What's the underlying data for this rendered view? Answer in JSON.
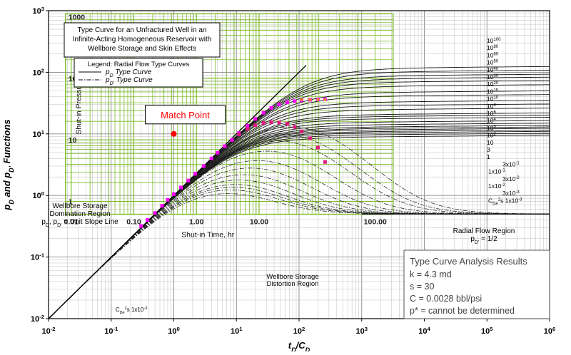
{
  "chart_data": {
    "type": "line",
    "xlabel": "t_D/C_D",
    "ylabel": "p_D and p_D' Functions",
    "xscale": "log",
    "yscale": "log",
    "xlim": [
      0.01,
      1000000
    ],
    "ylim": [
      0.01,
      1000
    ],
    "grid": true,
    "x_ticks": [
      "10^-2",
      "10^-1",
      "10^0",
      "10^1",
      "10^2",
      "10^3",
      "10^4",
      "10^5",
      "10^6"
    ],
    "y_ticks": [
      "10^-2",
      "10^-1",
      "10^0",
      "10^1",
      "10^2",
      "10^3"
    ],
    "title_box": [
      "Type Curve for an Unfractured Well in an",
      "Infinite-Acting Homogeneous Reservoir with",
      "Wellbore Storage and Skin Effects"
    ],
    "legend": {
      "title": "Legend: Radial Flow Type Curves",
      "entries": [
        {
          "label": "p_D Type Curve",
          "style": "solid"
        },
        {
          "label": "p_D' Type Curve",
          "style": "dash-dot"
        }
      ]
    },
    "cd_e2s_labels": [
      "10^100",
      "10^80",
      "10^60",
      "10^50",
      "10^40",
      "10^30",
      "10^20",
      "10^15",
      "10^10",
      "10^8",
      "10^6",
      "10^4",
      "10^3",
      "10^2",
      "10",
      "3",
      "1",
      "3x10^-1",
      "1x10^-1",
      "3x10^-2",
      "1x10^-2",
      "3x10^-3",
      "C_De^2s 1x10^-3"
    ],
    "pD_plateaus": [
      115,
      100,
      86,
      77,
      68,
      58,
      46,
      40,
      32,
      28,
      24,
      20,
      18.5,
      17,
      15,
      13.6,
      12.5,
      11.8,
      11.2,
      10.5,
      10,
      9.3,
      8.6
    ],
    "derivative_level": 0.5,
    "region_labels": {
      "wellbore": [
        "Wellbore Storage",
        "Domination Region",
        "p_D, p_D' = Unit Slope Line"
      ],
      "radial": [
        "Radial Flow Region",
        "p_D' = 1/2"
      ],
      "distortion": [
        "Wellbore Storage",
        "Distortion Region"
      ]
    },
    "overlay": {
      "ylabel": "Shut-in Pressure, psi",
      "xlabel": "Shut-in Time, hr",
      "x_ticks": [
        "0.01",
        "0.10",
        "1.00",
        "10.00",
        "100.00"
      ],
      "y_ticks": [
        "1",
        "10",
        "100",
        "1000"
      ],
      "color": "#7dbb2a"
    },
    "pressure_points": {
      "color": "#ff00ff",
      "x": [
        0.3,
        0.38,
        0.5,
        0.65,
        0.8,
        1.0,
        1.3,
        1.7,
        2.2,
        3,
        4,
        5,
        6.5,
        8.5,
        11,
        15,
        20,
        27,
        36,
        48,
        65,
        85,
        110,
        150,
        200,
        260
      ],
      "y": [
        0.32,
        0.4,
        0.52,
        0.68,
        0.85,
        1.05,
        1.35,
        1.75,
        2.25,
        3.0,
        4.0,
        4.95,
        6.3,
        8.0,
        10.3,
        13.5,
        17.5,
        22,
        26.5,
        30,
        32.5,
        34,
        35,
        35.8,
        36.2,
        36.5
      ]
    },
    "derivative_points": {
      "color": "#e0197e",
      "x": [
        11,
        15,
        20,
        27,
        36,
        48,
        65,
        85,
        110,
        150,
        200,
        260
      ],
      "y": [
        9.8,
        12,
        13.8,
        15,
        15.5,
        15.3,
        14.5,
        13,
        11,
        8.5,
        6,
        3.5
      ]
    },
    "match_point": {
      "label": "Match Point",
      "x": 1.0,
      "y": 10,
      "color": "#ff0000"
    },
    "results": {
      "title": "Type Curve Analysis Results",
      "lines": [
        "k = 4.3 md",
        "s = 30",
        "C = 0.0028 bbl/psi",
        "p* = cannot be determined"
      ]
    },
    "bottom_note": "C_De^2s 1x10^-3"
  }
}
